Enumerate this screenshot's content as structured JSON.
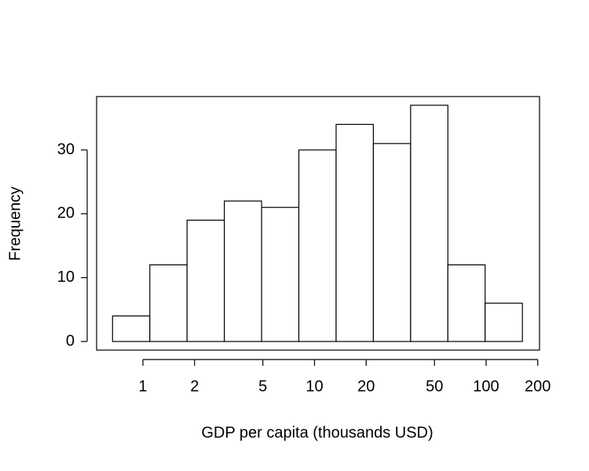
{
  "chart_data": {
    "type": "histogram",
    "xlabel": "GDP per capita (thousands USD)",
    "ylabel": "Frequency",
    "bins": [
      0.665,
      1.097,
      1.808,
      2.981,
      4.915,
      8.103,
      13.36,
      22.026,
      36.316,
      59.874,
      98.716,
      162.755
    ],
    "values": [
      4,
      12,
      19,
      22,
      21,
      30,
      34,
      31,
      37,
      12,
      6
    ],
    "color": "#ffffff",
    "xscale": "log",
    "xlim": [
      0.537,
      204.8
    ],
    "xticks": [
      1,
      2,
      5,
      10,
      20,
      50,
      100,
      200
    ],
    "ylim": [
      -1.35,
      38.36
    ],
    "yticks": [
      0,
      10,
      20,
      30
    ]
  }
}
